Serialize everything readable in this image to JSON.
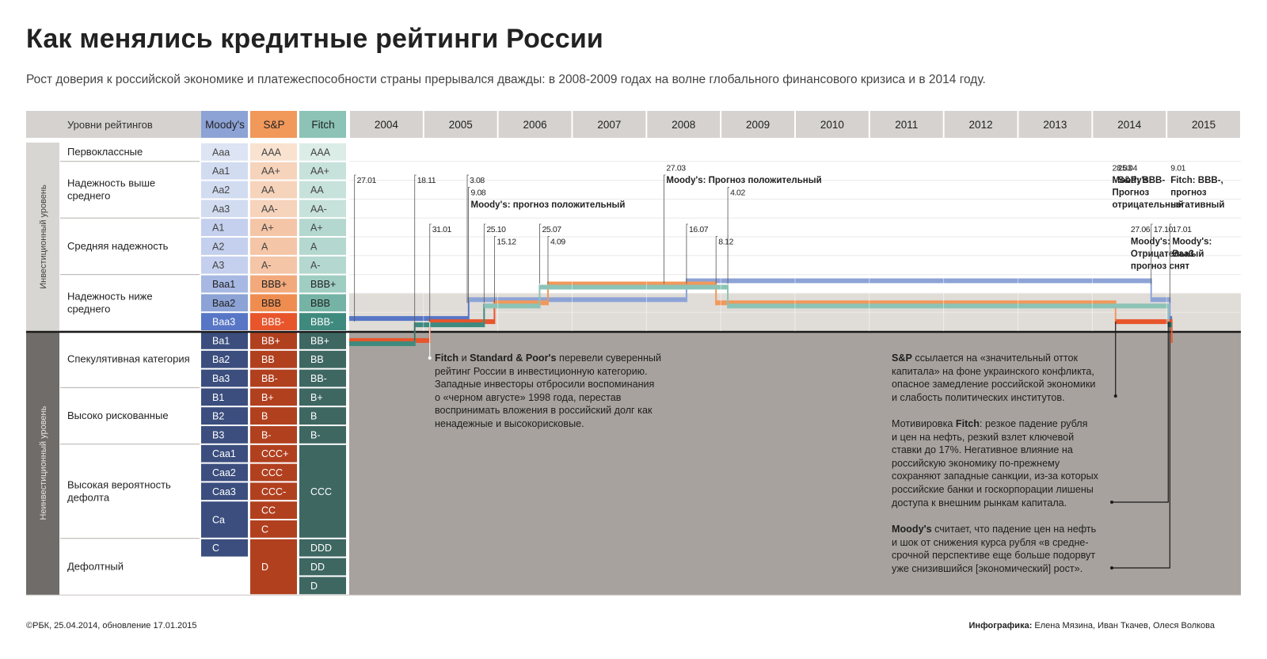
{
  "title": "Как менялись кредитные рейтинги России",
  "subtitle": "Рост доверия к российской экономике и платежеспособности страны прерывался дважды: в 2008-2009 годах на волне глобального финансового кризиса и в 2014 году.",
  "header": {
    "levels_label": "Уровни рейтингов",
    "moodys": "Moody's",
    "sp": "S&P",
    "fitch": "Fitch"
  },
  "years": [
    "2004",
    "2005",
    "2006",
    "2007",
    "2008",
    "2009",
    "2010",
    "2011",
    "2012",
    "2013",
    "2014",
    "2015"
  ],
  "sections": {
    "investment": "Инвестиционный уровень",
    "non_investment": "Неинвестиционный уровень"
  },
  "categories": [
    {
      "label": "Первоклассные"
    },
    {
      "label": "Надежность выше среднего"
    },
    {
      "label": "Средняя надежность"
    },
    {
      "label": "Надежность ниже среднего"
    },
    {
      "label": "Спекулятивная категория"
    },
    {
      "label": "Высоко рискованные"
    },
    {
      "label": "Высокая вероятность дефолта"
    },
    {
      "label": "Дефолтный"
    }
  ],
  "rating_rows": [
    {
      "m": "Aaa",
      "s": "AAA",
      "f": "AAA"
    },
    {
      "m": "Aa1",
      "s": "AA+",
      "f": "AA+"
    },
    {
      "m": "Aa2",
      "s": "AA",
      "f": "AA"
    },
    {
      "m": "Aa3",
      "s": "AA-",
      "f": "AA-"
    },
    {
      "m": "A1",
      "s": "A+",
      "f": "A+"
    },
    {
      "m": "A2",
      "s": "A",
      "f": "A"
    },
    {
      "m": "A3",
      "s": "A-",
      "f": "A-"
    },
    {
      "m": "Baa1",
      "s": "BBB+",
      "f": "BBB+"
    },
    {
      "m": "Baa2",
      "s": "BBB",
      "f": "BBB"
    },
    {
      "m": "Baa3",
      "s": "BBB-",
      "f": "BBB-"
    },
    {
      "m": "Ba1",
      "s": "BB+",
      "f": "BB+"
    },
    {
      "m": "Ba2",
      "s": "BB",
      "f": "BB"
    },
    {
      "m": "Ba3",
      "s": "BB-",
      "f": "BB-"
    },
    {
      "m": "B1",
      "s": "B+",
      "f": "B+"
    },
    {
      "m": "B2",
      "s": "B",
      "f": "B"
    },
    {
      "m": "B3",
      "s": "B-",
      "f": "B-"
    },
    {
      "m": "Caa1",
      "s": "CCC+",
      "f": ""
    },
    {
      "m": "Caa2",
      "s": "CCC",
      "f": ""
    },
    {
      "m": "Caa3",
      "s": "CCC-",
      "f": "CCC"
    },
    {
      "m": "Ca",
      "s": "CC",
      "f": ""
    },
    {
      "m": "",
      "s": "C",
      "f": ""
    },
    {
      "m": "C",
      "s": "",
      "f": "DDD"
    },
    {
      "m": "",
      "s": "D",
      "f": "DD"
    },
    {
      "m": "",
      "s": "",
      "f": "D"
    }
  ],
  "colors": {
    "moodys": "#8da3d6",
    "sp": "#f1985b",
    "fitch": "#8cc3b6",
    "sp_recent": "#e8552b",
    "fitch_recent": "#3f8a7f",
    "moodys_recent": "#5876c6"
  },
  "chart_data": {
    "type": "line",
    "title": "Как менялись кредитные рейтинги России",
    "x_range": [
      "2004-01-01",
      "2016-01-01"
    ],
    "y_scale": [
      "Aaa",
      "Aa1",
      "Aa2",
      "Aa3",
      "A1",
      "A2",
      "A3",
      "Baa1",
      "Baa2",
      "Baa3",
      "Ba1",
      "Ba2",
      "Ba3",
      "B1",
      "B2",
      "B3",
      "Caa1",
      "Caa2",
      "Caa3",
      "Ca",
      "C",
      "DDD/D"
    ],
    "series": [
      {
        "name": "Moody's",
        "steps": [
          {
            "date": "2004-01-01",
            "rating": "Baa3"
          },
          {
            "date": "2005-08-10",
            "rating": "Baa2"
          },
          {
            "date": "2008-07-16",
            "rating": "Baa1"
          },
          {
            "date": "2014-10-17",
            "rating": "Baa2"
          },
          {
            "date": "2015-01-17",
            "rating": "Baa3"
          }
        ]
      },
      {
        "name": "S&P",
        "steps": [
          {
            "date": "2004-01-01",
            "rating": "BB+"
          },
          {
            "date": "2005-01-31",
            "rating": "BBB-"
          },
          {
            "date": "2005-12-15",
            "rating": "BBB"
          },
          {
            "date": "2006-09-04",
            "rating": "BBB+"
          },
          {
            "date": "2008-12-08",
            "rating": "BBB"
          },
          {
            "date": "2014-04-25",
            "rating": "BBB-"
          },
          {
            "date": "2015-01-26",
            "rating": "BB+"
          }
        ]
      },
      {
        "name": "Fitch",
        "steps": [
          {
            "date": "2004-01-01",
            "rating": "BB+"
          },
          {
            "date": "2004-11-18",
            "rating": "BBB-"
          },
          {
            "date": "2005-10-25",
            "rating": "BBB"
          },
          {
            "date": "2006-07-25",
            "rating": "BBB+"
          },
          {
            "date": "2009-02-04",
            "rating": "BBB"
          },
          {
            "date": "2015-01-09",
            "rating": "BBB-"
          }
        ]
      }
    ],
    "annotations": [
      {
        "text": "27.01",
        "date": "2004-01-27",
        "line": 0
      },
      {
        "text": "18.11",
        "date": "2004-11-18",
        "line": 0
      },
      {
        "text": "31.01",
        "date": "2005-01-31",
        "line": 4
      },
      {
        "text": "3.08",
        "date": "2005-08-03",
        "line": 0
      },
      {
        "text": "9.08",
        "date": "2005-08-09",
        "line": 1
      },
      {
        "text": "Moody's: прогноз положительный",
        "date": "2005-08-09",
        "line": 2,
        "bold": true
      },
      {
        "text": "25.10",
        "date": "2005-10-25",
        "line": 4
      },
      {
        "text": "15.12",
        "date": "2005-12-15",
        "line": 5
      },
      {
        "text": "25.07",
        "date": "2006-07-25",
        "line": 4
      },
      {
        "text": "4.09",
        "date": "2006-09-04",
        "line": 5
      },
      {
        "text": "27.03",
        "date": "2008-03-27",
        "line": -1
      },
      {
        "text": "Moody's: Прогноз положительный",
        "date": "2008-03-27",
        "line": 0,
        "bold": true
      },
      {
        "text": "16.07",
        "date": "2008-07-16",
        "line": 4
      },
      {
        "text": "4.02",
        "date": "2009-02-04",
        "line": 1
      },
      {
        "text": "8.12",
        "date": "2008-12-08",
        "line": 5
      },
      {
        "text": "28.03",
        "date": "2014-03-28",
        "line": -1
      },
      {
        "text": "Moody's:",
        "date": "2014-03-28",
        "line": 0,
        "bold": true
      },
      {
        "text": "Прогноз",
        "date": "2014-03-28",
        "line": 1,
        "bold": true
      },
      {
        "text": "отрицательный",
        "date": "2014-03-28",
        "line": 2,
        "bold": true
      },
      {
        "text": "25.04",
        "date": "2014-04-25",
        "line": -1
      },
      {
        "text": "S&P: BBB-",
        "date": "2014-04-25",
        "line": 0,
        "bold": true
      },
      {
        "text": "9.01",
        "date": "2015-01-09",
        "line": -1
      },
      {
        "text": "Fitch: BBB-,",
        "date": "2015-01-09",
        "line": 0,
        "bold": true
      },
      {
        "text": "прогноз",
        "date": "2015-01-09",
        "line": 1,
        "bold": true
      },
      {
        "text": "негативный",
        "date": "2015-01-09",
        "line": 2,
        "bold": true
      },
      {
        "text": "27.06",
        "date": "2014-06-27",
        "line": 4
      },
      {
        "text": "Moody's:",
        "date": "2014-06-27",
        "line": 5,
        "bold": true
      },
      {
        "text": "Отрицательный",
        "date": "2014-06-27",
        "line": 6,
        "bold": true
      },
      {
        "text": "прогноз снят",
        "date": "2014-06-27",
        "line": 7,
        "bold": true
      },
      {
        "text": "17.10",
        "date": "2014-10-17",
        "line": 4
      },
      {
        "text": "17.01",
        "date": "2015-01-17",
        "line": 4
      },
      {
        "text": "Moody's:",
        "date": "2015-01-17",
        "line": 5,
        "bold": true
      },
      {
        "text": "Baa3",
        "date": "2015-01-17",
        "line": 6,
        "bold": true
      }
    ]
  },
  "notes": {
    "note1": {
      "p1_b1": "Fitch",
      "p1_t1": " и ",
      "p1_b2": "Standard & Poor's",
      "p1_t2": " перевели суверенный",
      "l2": "рейтинг России в инвестиционную категорию.",
      "l3": "Западные инвесторы отбросили воспоминания",
      "l4": "о «черном августе» 1998 года, перестав",
      "l5": "воспринимать вложения в российский долг как",
      "l6": "ненадежные и высокорисковые."
    },
    "note2": {
      "b": "S&P",
      "l1": " ссылается на «значительный отток",
      "l2": "капитала» на фоне украинского конфликта,",
      "l3": "опасное замедление российской экономики",
      "l4": "и слабость политических институтов."
    },
    "note3": {
      "t0": "Мотивировка ",
      "b": "Fitch",
      "l1": ": резкое падение рубля",
      "l2": "и цен на нефть, резкий взлет ключевой",
      "l3": "ставки до 17%. Негативное влияние на",
      "l4": "российскую экономику по-прежнему",
      "l5": "сохраняют западные санкции, из-за которых",
      "l6": "российские банки и госкорпорации лишены",
      "l7": "доступа к внешним рынкам капитала."
    },
    "note4": {
      "b": "Moody's",
      "l1": " считает, что падение цен на нефть",
      "l2": "и шок от снижения курса рубля «в средне-",
      "l3": "срочной перспективе еще больше подорвут",
      "l4": "уже снизившийся [экономический] рост»."
    }
  },
  "footer": {
    "source": "©РБК, 25.04.2014, обновление 17.01.2015",
    "credits_label": "Инфографика:",
    "credits": " Елена Мязина, Иван Ткачев, Олеся Волкова"
  }
}
